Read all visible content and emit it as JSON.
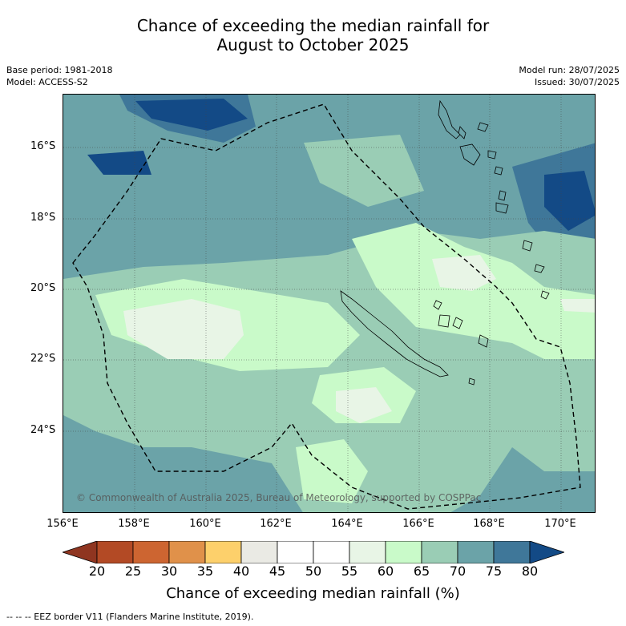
{
  "title_line1": "Chance of exceeding the median rainfall for",
  "title_line2": "August to October 2025",
  "base_period": "Base period: 1981-2018",
  "model": "Model: ACCESS-S2",
  "model_run": "Model run: 28/07/2025",
  "issued": "Issued: 30/07/2025",
  "lat_labels": [
    "16°S",
    "18°S",
    "20°S",
    "22°S",
    "24°S"
  ],
  "lon_labels": [
    "156°E",
    "158°E",
    "160°E",
    "162°E",
    "164°E",
    "166°E",
    "168°E",
    "170°E"
  ],
  "credit": "© Commonwealth of Australia 2025, Bureau of Meteorology, supported by COSPPac",
  "colorbar": {
    "ticks": [
      "20",
      "25",
      "30",
      "35",
      "40",
      "45",
      "50",
      "55",
      "60",
      "65",
      "70",
      "75",
      "80"
    ],
    "colors": [
      "#b34a25",
      "#cd6531",
      "#e0914a",
      "#fdd06b",
      "#eaeae4",
      "#ffffff",
      "#ffffff",
      "#e8f5e6",
      "#c9fac9",
      "#9acdb5",
      "#6ba3a8",
      "#3f7799"
    ],
    "low_end_color": "#8f3520",
    "high_end_color": "#134a86",
    "title": "Chance of exceeding median rainfall (%)"
  },
  "footer": "-- -- -- EEZ border V11 (Flanders Marine Institute, 2019)."
}
